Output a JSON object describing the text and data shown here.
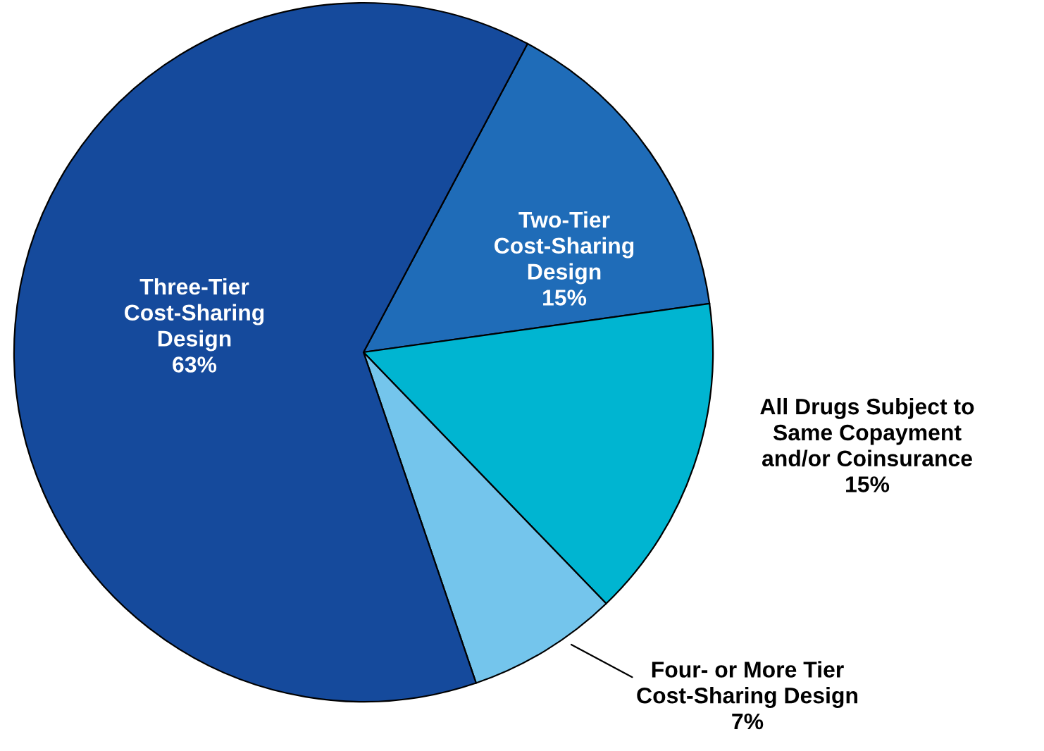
{
  "chart_data": {
    "type": "pie",
    "categories": [
      "Two-Tier\nCost-Sharing\nDesign",
      "All Drugs Subject to\nSame Copayment\nand/or Coinsurance",
      "Four- or More Tier\nCost-Sharing Design",
      "Three-Tier\nCost-Sharing\nDesign"
    ],
    "values": [
      15,
      15,
      7,
      63
    ],
    "value_labels": [
      "15%",
      "15%",
      "7%",
      "63%"
    ],
    "colors": [
      "#1f6cb8",
      "#00b5d1",
      "#74c5ec",
      "#154a9c"
    ]
  }
}
